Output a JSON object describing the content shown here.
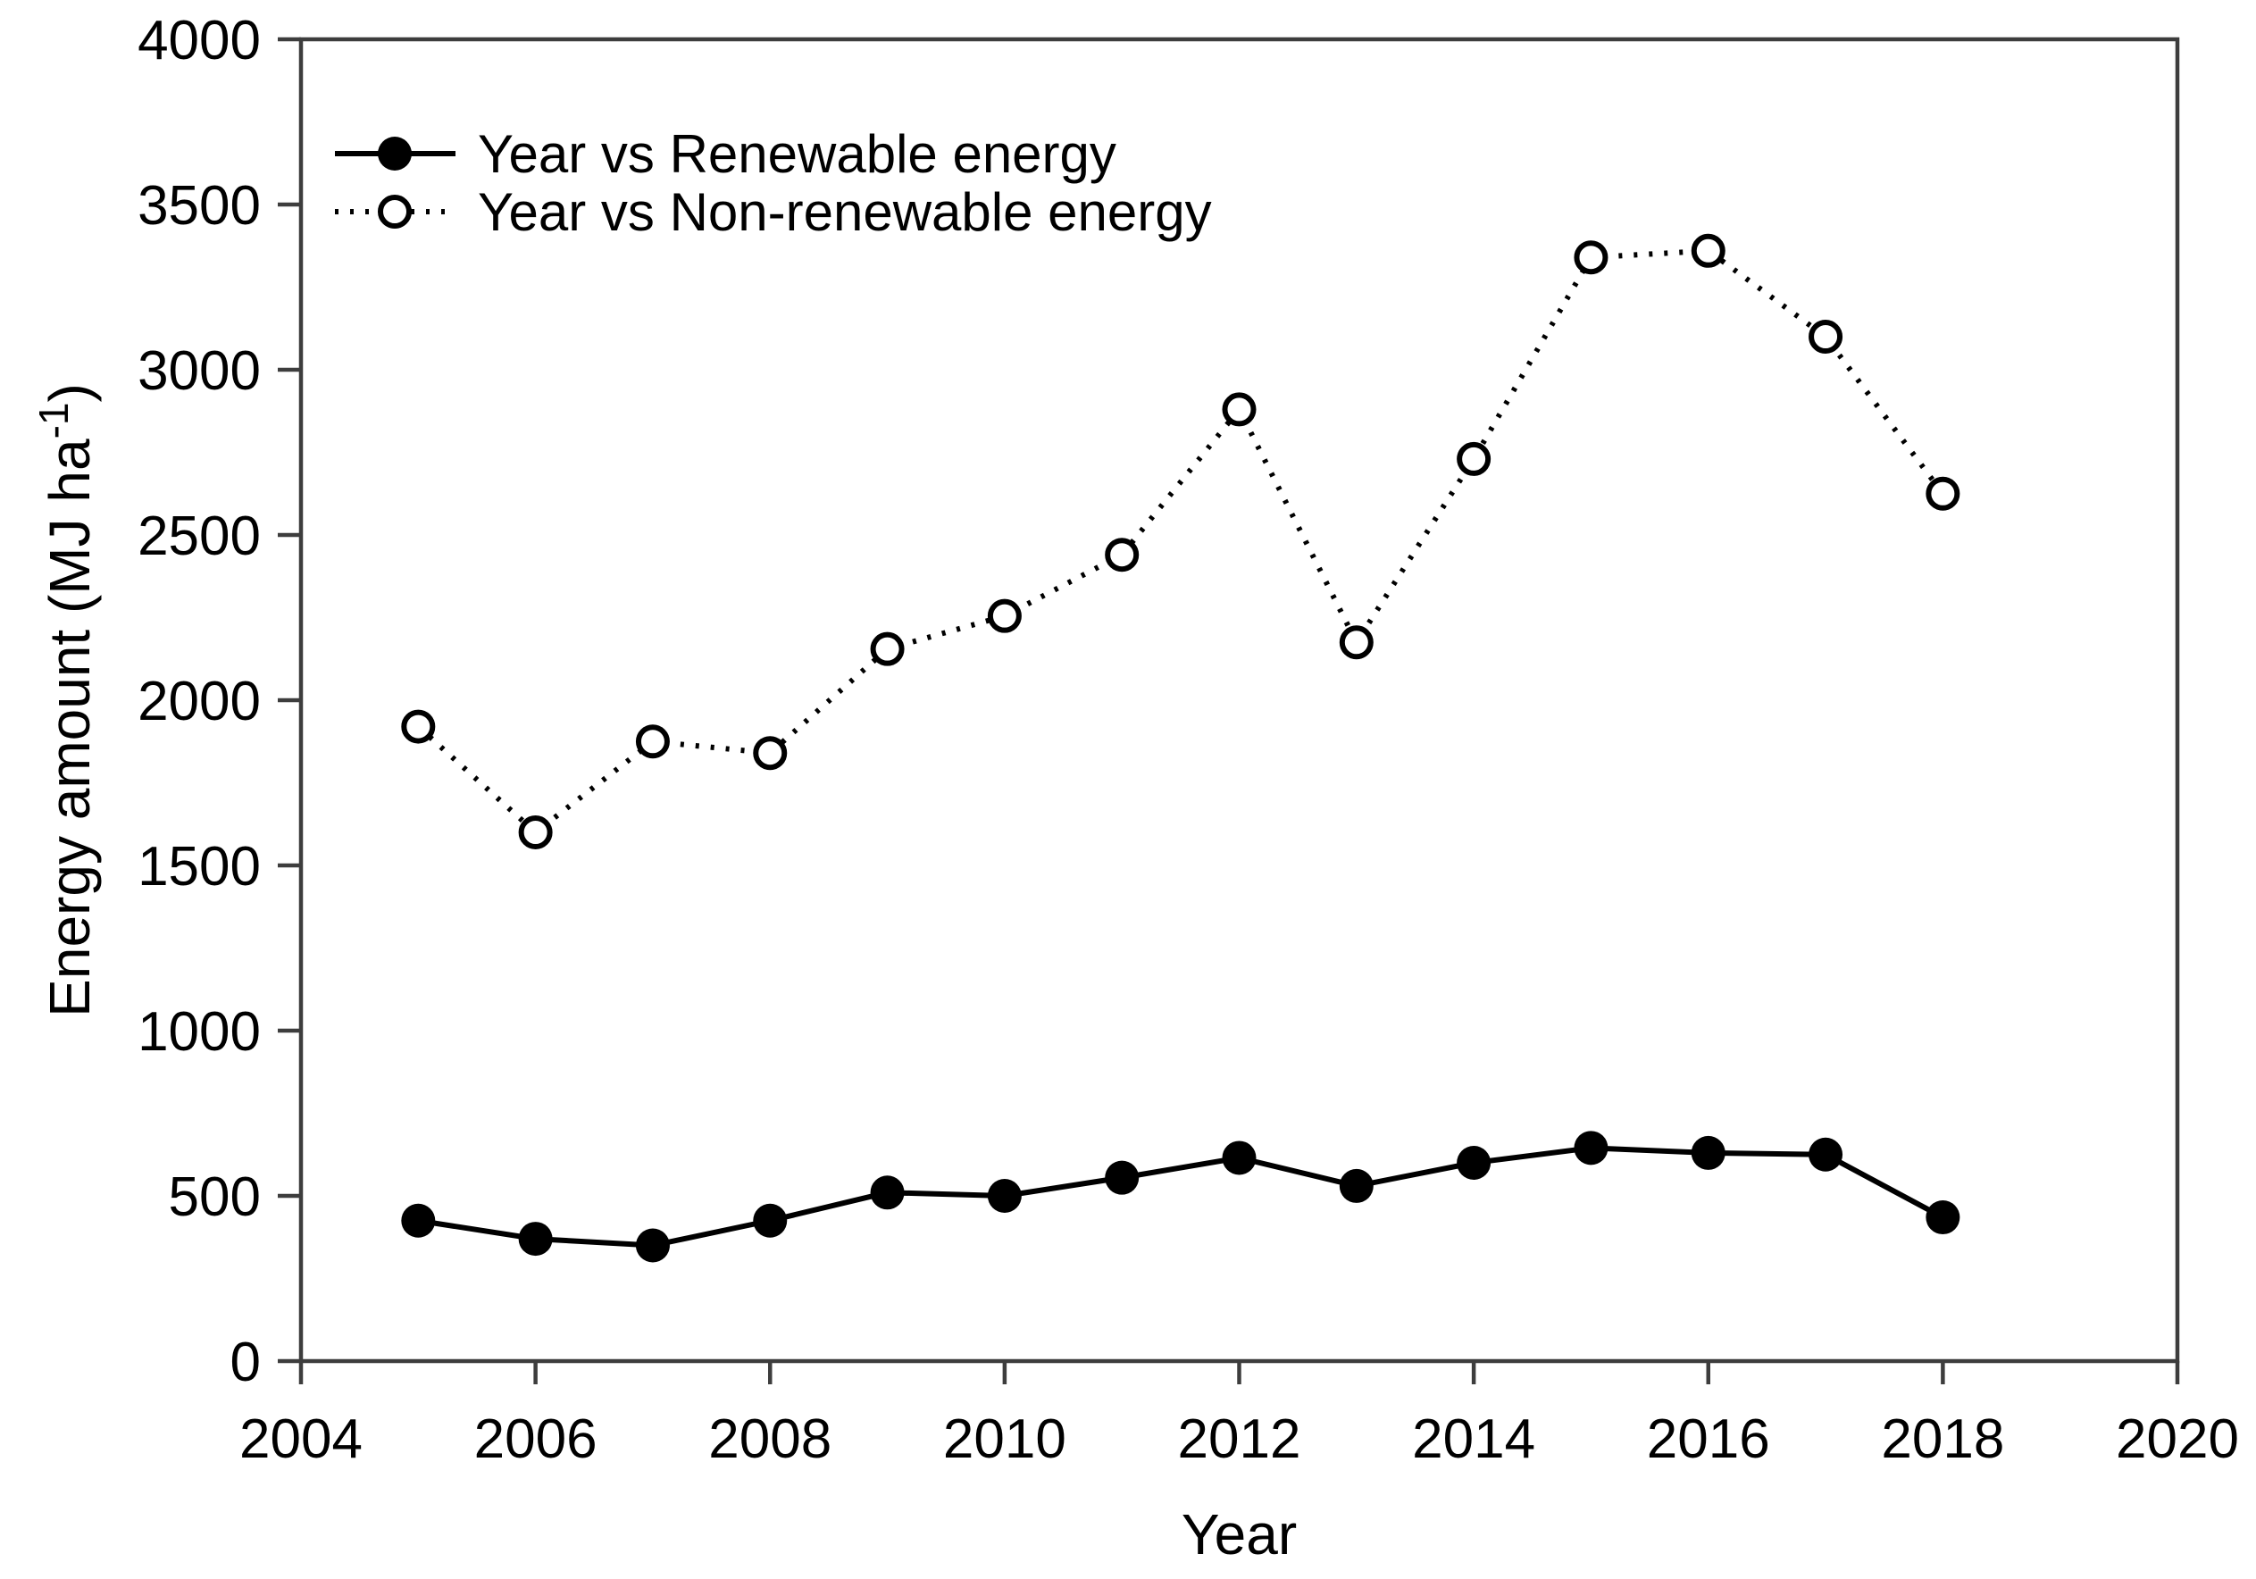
{
  "figure": {
    "x_axis_title": "Year",
    "y_axis_title_main": "Energy amount (MJ ha",
    "y_axis_title_sup": "-1",
    "y_axis_title_close": ")",
    "legend": [
      {
        "label": "Year vs Renewable energy",
        "marker": "filled-circle",
        "line": "solid"
      },
      {
        "label": "Year vs Non-renewable energy",
        "marker": "open-circle",
        "line": "dotted"
      }
    ]
  },
  "chart_data": {
    "type": "line",
    "x": [
      2005,
      2006,
      2007,
      2008,
      2009,
      2010,
      2011,
      2012,
      2013,
      2014,
      2015,
      2016,
      2017,
      2018
    ],
    "series": [
      {
        "name": "Year vs Renewable energy",
        "marker": "filled-circle",
        "line": "solid",
        "values": [
          425,
          370,
          350,
          425,
          510,
          500,
          555,
          615,
          530,
          600,
          645,
          630,
          625,
          435
        ]
      },
      {
        "name": "Year vs Non-renewable energy",
        "marker": "open-circle",
        "line": "dotted",
        "values": [
          1920,
          1600,
          1875,
          1840,
          2155,
          2255,
          2440,
          2880,
          2175,
          2730,
          3340,
          3360,
          3100,
          2625
        ]
      }
    ],
    "title": "",
    "xlabel": "Year",
    "ylabel": "Energy amount (MJ ha-1)",
    "xlim": [
      2004,
      2020
    ],
    "ylim": [
      0,
      4000
    ],
    "x_ticks": [
      2004,
      2006,
      2008,
      2010,
      2012,
      2014,
      2016,
      2018,
      2020
    ],
    "y_ticks": [
      0,
      500,
      1000,
      1500,
      2000,
      2500,
      3000,
      3500,
      4000
    ],
    "grid": false,
    "legend_position": "top-left"
  },
  "style": {
    "data_color": "#000000",
    "frame_color": "#3d3d3d",
    "background": "#ffffff",
    "open_marker_fill": "#ffffff"
  }
}
